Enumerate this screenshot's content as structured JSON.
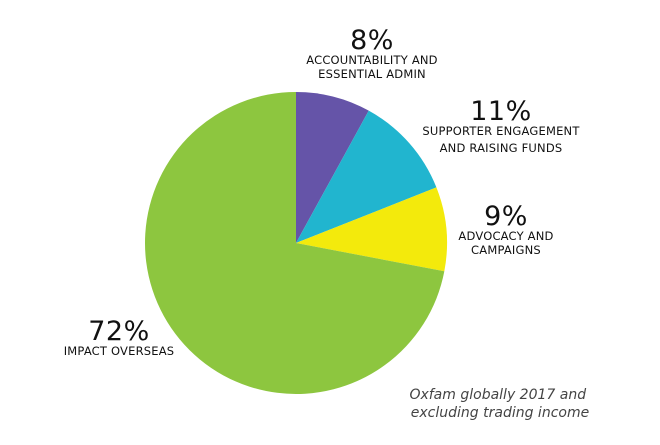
{
  "chart_data": {
    "type": "pie",
    "title": "",
    "slices": [
      {
        "value": 8,
        "percent_label": "8%",
        "label_lines": [
          "ACCOUNTABILITY AND",
          "ESSENTIAL ADMIN"
        ],
        "color": "#6554a8"
      },
      {
        "value": 11,
        "percent_label": "11%",
        "label_lines": [
          "SUPPORTER ENGAGEMENT",
          "AND RAISING FUNDS"
        ],
        "color": "#21b5cf"
      },
      {
        "value": 9,
        "percent_label": "9%",
        "label_lines": [
          "ADVOCACY AND",
          "CAMPAIGNS"
        ],
        "color": "#f3ea0c"
      },
      {
        "value": 72,
        "percent_label": "72%",
        "label_lines": [
          "IMPACT OVERSEAS"
        ],
        "color": "#8dc63f"
      }
    ],
    "start_angle_deg": 0,
    "direction": "clockwise",
    "annotation_lines": [
      "Oxfam globally 2017 and",
      "excluding trading income"
    ]
  }
}
